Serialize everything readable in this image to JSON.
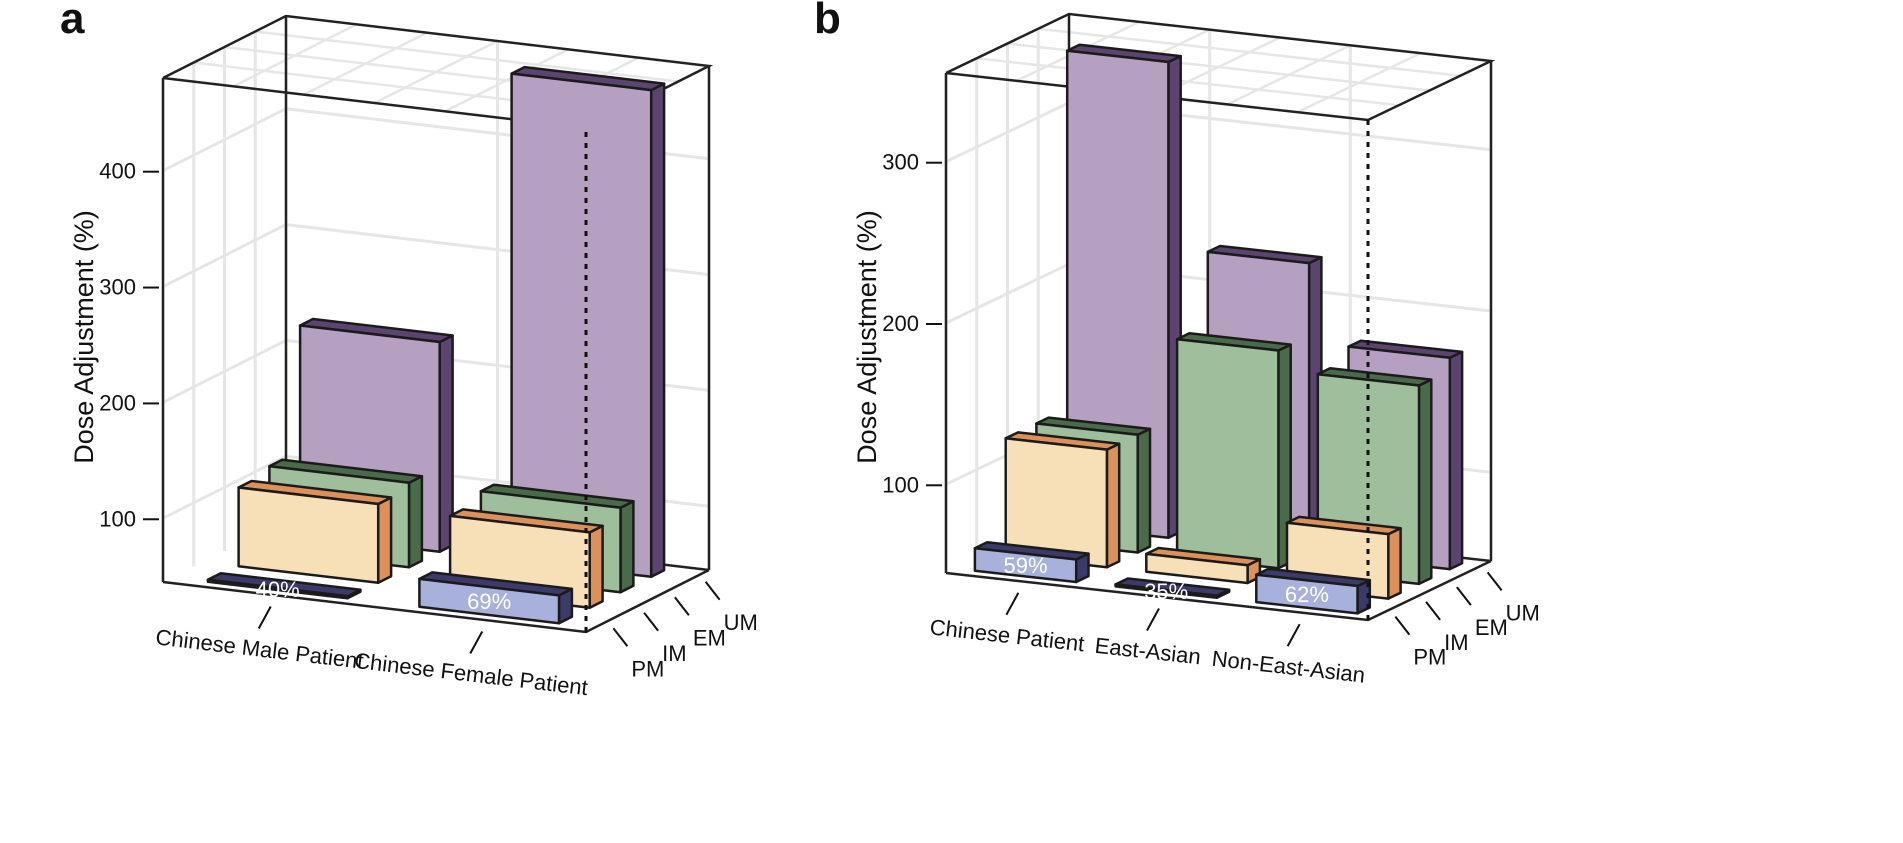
{
  "chart_data": [
    {
      "panel": "a",
      "type": "bar3d",
      "ylabel": "Dose Adjustment (%)",
      "ylim": [
        45,
        480
      ],
      "yticks": [
        100,
        200,
        300,
        400
      ],
      "grid": true,
      "categories": [
        "Chinese Male Patient",
        "Chinese Female Patient"
      ],
      "depth_categories": [
        "PM",
        "IM",
        "EM",
        "UM"
      ],
      "series": [
        {
          "name": "PM",
          "values": [
            40,
            69
          ],
          "labels": [
            "40%",
            "69%"
          ]
        },
        {
          "name": "IM",
          "values": [
            113,
            110
          ]
        },
        {
          "name": "EM",
          "values": [
            118,
            118
          ]
        },
        {
          "name": "UM",
          "values": [
            226,
            465
          ]
        }
      ]
    },
    {
      "panel": "b",
      "type": "bar3d",
      "ylabel": "Dose Adjustment (%)",
      "ylim": [
        45,
        355
      ],
      "yticks": [
        100,
        200,
        300
      ],
      "grid": true,
      "categories": [
        "Chinese Patient",
        "East-Asian",
        "Non-East-Asian"
      ],
      "depth_categories": [
        "PM",
        "IM",
        "EM",
        "UM"
      ],
      "series": [
        {
          "name": "PM",
          "values": [
            59,
            35,
            62
          ],
          "labels": [
            "59%",
            "35%",
            "62%"
          ]
        },
        {
          "name": "IM",
          "values": [
            118,
            56,
            85
          ]
        },
        {
          "name": "EM",
          "values": [
            118,
            180,
            168
          ]
        },
        {
          "name": "UM",
          "values": [
            340,
            225,
            176
          ]
        }
      ]
    }
  ],
  "colors": {
    "PM": {
      "front": "#a8b1dc",
      "side": "#3c3a6b",
      "top": "#3c3a6b"
    },
    "IM": {
      "front": "#f7dfb8",
      "side": "#dc905a",
      "top": "#dc905a"
    },
    "EM": {
      "front": "#9ebe9c",
      "side": "#4a6b49",
      "top": "#4a6b49"
    },
    "UM": {
      "front": "#b6a0c2",
      "side": "#5c4470",
      "top": "#5c4470"
    }
  }
}
